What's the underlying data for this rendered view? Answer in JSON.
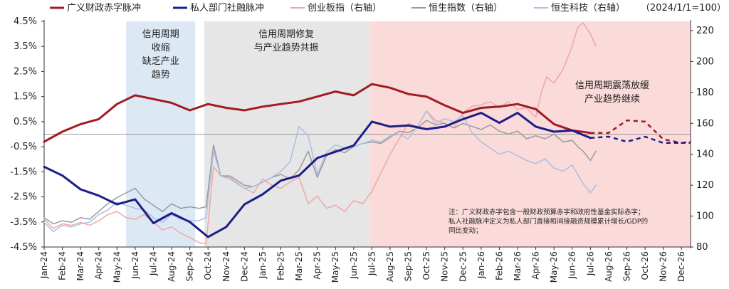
{
  "chart_data": {
    "type": "line",
    "title": "",
    "unit_label": "（2024/1/1=100）",
    "x_categories": [
      "Jan-24",
      "Feb-24",
      "Mar-24",
      "Apr-24",
      "May-24",
      "Jun-24",
      "Jul-24",
      "Aug-24",
      "Sep-24",
      "Oct-24",
      "Nov-24",
      "Dec-24",
      "Jan-25",
      "Feb-25",
      "Mar-25",
      "Apr-25",
      "May-25",
      "Jun-25",
      "Jul-25",
      "Aug-25",
      "Sep-25",
      "Oct-25",
      "Nov-25",
      "Dec-25",
      "Jan-26",
      "Feb-26",
      "Mar-26",
      "Apr-26",
      "May-26",
      "Jun-26",
      "Jul-26",
      "Aug-26",
      "Sep-26",
      "Oct-26",
      "Nov-26",
      "Dec-26"
    ],
    "y_left": {
      "ticks": [
        "4.5%",
        "3.5%",
        "2.5%",
        "1.5%",
        "0.5%",
        "-0.5%",
        "-1.5%",
        "-2.5%",
        "-3.5%",
        "-4.5%"
      ],
      "min": -4.5,
      "max": 4.5
    },
    "y_right": {
      "ticks": [
        "220",
        "200",
        "180",
        "160",
        "140",
        "120",
        "100",
        "80"
      ],
      "min": 80,
      "max": 226
    },
    "legend": [
      {
        "name": "广义财政赤字脉冲",
        "color": "#a11b22",
        "width": 3
      },
      {
        "name": "私人部门社融脉冲",
        "color": "#1b1e88",
        "width": 3
      },
      {
        "name": "创业板指（右轴）",
        "color": "#f0a6a6",
        "width": 1.5
      },
      {
        "name": "恒生指数（右轴）",
        "color": "#9a9a9a",
        "width": 1.5
      },
      {
        "name": "恒生科技（右轴）",
        "color": "#a9bfe3",
        "width": 1.5
      }
    ],
    "zones": [
      {
        "label_lines": [
          "信用周期",
          "收缩",
          "缺乏产业",
          "趋势"
        ],
        "from": 4.5,
        "to": 8.3,
        "color": "#dde8f5"
      },
      {
        "label_lines": [
          "信用周期修复",
          "与产业趋势共振"
        ],
        "from": 8.8,
        "to": 17.9,
        "color": "#e6e6e6"
      },
      {
        "label_lines": [
          "信用周期震荡放缓",
          "产业趋势继续"
        ],
        "from": 17.9,
        "to": 35.5,
        "color": "#fbdada"
      }
    ],
    "note_lines": [
      "注：广义财政赤字包含一般财政预算赤字和政府性基金实际赤字；",
      "私人社融脉冲定义为私人部门直接和间接融资规模累计增长/GDP的",
      "同比变动；"
    ],
    "series": [
      {
        "name": "广义财政赤字脉冲",
        "axis": "left",
        "x": [
          0,
          1,
          2,
          3,
          4,
          5,
          6,
          7,
          8,
          9,
          10,
          11,
          12,
          13,
          14,
          15,
          16,
          17,
          18,
          19,
          20,
          21,
          22,
          23,
          24,
          25,
          26,
          27,
          28,
          29,
          30
        ],
        "values": [
          -0.3,
          0.1,
          0.4,
          0.6,
          1.2,
          1.55,
          1.4,
          1.25,
          0.95,
          1.2,
          1.05,
          0.95,
          1.1,
          1.2,
          1.3,
          1.5,
          1.7,
          1.55,
          2.0,
          1.85,
          1.6,
          1.5,
          1.15,
          0.85,
          1.05,
          1.1,
          1.2,
          1.0,
          0.4,
          0.15,
          0.05
        ],
        "forecast_x": [
          30,
          31,
          32,
          33,
          34,
          35,
          35.5
        ],
        "forecast_values": [
          0.05,
          0.05,
          0.55,
          0.5,
          -0.2,
          -0.35,
          -0.35
        ]
      },
      {
        "name": "私人部门社融脉冲",
        "axis": "left",
        "x": [
          0,
          1,
          2,
          3,
          4,
          5,
          6,
          7,
          8,
          9,
          10,
          11,
          12,
          13,
          14,
          15,
          16,
          17,
          18,
          19,
          20,
          21,
          22,
          23,
          24,
          25,
          26,
          27,
          28,
          29,
          30
        ],
        "values": [
          -1.3,
          -1.65,
          -2.2,
          -2.45,
          -2.8,
          -2.6,
          -3.55,
          -3.15,
          -3.5,
          -4.1,
          -3.7,
          -2.8,
          -2.4,
          -1.85,
          -1.65,
          -0.95,
          -0.7,
          -0.45,
          0.5,
          0.3,
          0.35,
          0.2,
          0.3,
          0.6,
          0.85,
          0.45,
          0.85,
          0.3,
          0.1,
          0.15,
          -0.15
        ],
        "forecast_x": [
          30,
          31,
          32,
          33,
          34,
          35,
          35.5
        ],
        "forecast_values": [
          -0.15,
          -0.1,
          -0.3,
          -0.1,
          -0.35,
          -0.35,
          -0.3
        ]
      },
      {
        "name": "创业板指（右轴）",
        "axis": "right",
        "x": [
          0,
          0.5,
          1,
          1.5,
          2,
          2.5,
          3,
          3.5,
          4,
          4.5,
          5,
          5.5,
          6,
          6.5,
          7,
          7.5,
          8,
          8.5,
          8.9,
          9.3,
          9.7,
          10.2,
          11,
          11.5,
          12,
          12.5,
          13,
          13.5,
          14,
          14.5,
          15,
          15.5,
          16,
          16.5,
          17,
          17.5,
          18,
          18.5,
          19,
          19.5,
          20,
          20.5,
          21,
          21.5,
          22,
          22.5,
          23,
          23.5,
          24,
          24.5,
          25,
          25.5,
          26,
          26.5,
          27,
          27.3,
          27.6,
          28,
          28.5,
          29,
          29.3,
          29.6,
          30,
          30.3
        ],
        "values": [
          98,
          92,
          95,
          94,
          96,
          94,
          97,
          101,
          103,
          99,
          98,
          101,
          96,
          91,
          93,
          89,
          86,
          83,
          82,
          132,
          126,
          125,
          118,
          115,
          124,
          120,
          118,
          122,
          125,
          108,
          113,
          105,
          107,
          103,
          110,
          108,
          116,
          128,
          140,
          150,
          160,
          158,
          168,
          162,
          160,
          157,
          167,
          171,
          172,
          174,
          170,
          174,
          169,
          170,
          164,
          180,
          190,
          186,
          195,
          210,
          222,
          225,
          218,
          210
        ]
      },
      {
        "name": "恒生指数（右轴）",
        "axis": "right",
        "x": [
          0,
          0.5,
          1,
          1.5,
          2,
          2.5,
          3,
          3.5,
          4,
          4.5,
          5,
          5.5,
          6,
          6.5,
          7,
          7.5,
          8,
          8.5,
          8.9,
          9.3,
          9.7,
          10.2,
          11,
          11.5,
          12,
          12.5,
          13,
          13.5,
          14,
          14.5,
          15,
          15.5,
          16,
          16.5,
          17,
          17.5,
          18,
          18.5,
          19,
          19.5,
          20,
          20.5,
          21,
          21.5,
          22,
          22.5,
          23,
          23.5,
          24,
          24.5,
          25,
          25.5,
          26,
          26.5,
          27,
          27.5,
          28,
          28.5,
          29,
          29.3,
          29.6,
          30,
          30.3
        ],
        "values": [
          99,
          95,
          97,
          96,
          99,
          98,
          103,
          108,
          112,
          115,
          118,
          111,
          107,
          103,
          108,
          105,
          106,
          105,
          106,
          146,
          126,
          126,
          120,
          119,
          122,
          125,
          127,
          124,
          130,
          142,
          125,
          139,
          143,
          141,
          145,
          147,
          148,
          147,
          151,
          155,
          154,
          157,
          162,
          159,
          160,
          157,
          160,
          158,
          156,
          159,
          155,
          153,
          155,
          150,
          152,
          150,
          153,
          148,
          149,
          145,
          142,
          136,
          142
        ]
      },
      {
        "name": "恒生科技（右轴）",
        "axis": "right",
        "x": [
          0,
          0.5,
          1,
          1.5,
          2,
          2.5,
          3,
          3.5,
          4,
          4.5,
          5,
          5.5,
          6,
          6.5,
          7,
          7.5,
          8,
          8.5,
          8.9,
          9.3,
          9.7,
          10.2,
          11,
          11.5,
          12,
          12.5,
          13,
          13.5,
          14,
          14.5,
          15,
          15.5,
          16,
          16.5,
          17,
          17.5,
          18,
          18.5,
          19,
          19.5,
          20,
          20.5,
          21,
          21.5,
          22,
          22.5,
          23,
          23.5,
          24,
          24.5,
          25,
          25.5,
          26,
          26.5,
          27,
          27.5,
          28,
          28.5,
          29,
          29.3,
          29.6,
          30,
          30.3
        ],
        "values": [
          96,
          90,
          94,
          93,
          95,
          96,
          101,
          104,
          109,
          107,
          105,
          104,
          99,
          96,
          101,
          98,
          97,
          97,
          99,
          142,
          126,
          124,
          118,
          119,
          122,
          125,
          129,
          135,
          158,
          152,
          127,
          141,
          146,
          144,
          145,
          147,
          149,
          148,
          152,
          153,
          150,
          158,
          168,
          160,
          163,
          161,
          165,
          154,
          148,
          144,
          140,
          142,
          139,
          136,
          134,
          137,
          131,
          129,
          133,
          127,
          121,
          115,
          120
        ]
      }
    ]
  }
}
